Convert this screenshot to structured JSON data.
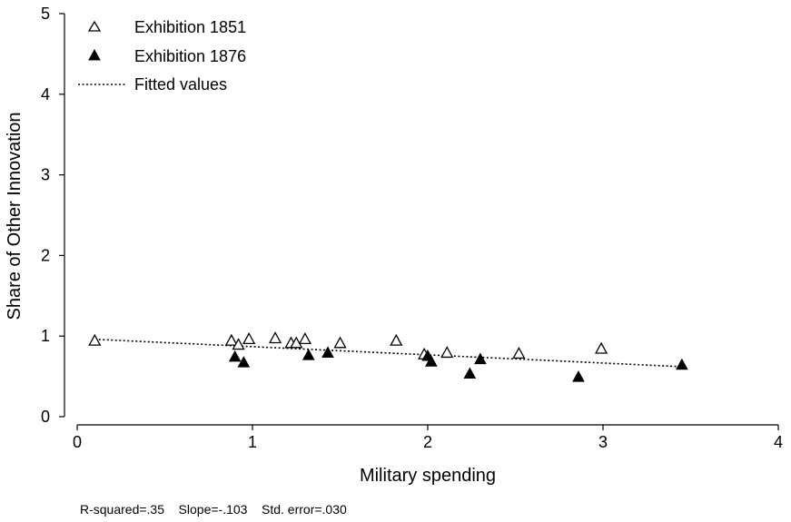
{
  "chart_data": {
    "type": "scatter",
    "xlabel": "Military spending",
    "ylabel": "Share of Other Innovation",
    "xlim": [
      0,
      4
    ],
    "ylim": [
      0,
      5
    ],
    "xticks": [
      "0",
      "1",
      "2",
      "3",
      "4"
    ],
    "yticks": [
      "0",
      "1",
      "2",
      "3",
      "4",
      "5"
    ],
    "legend_position": "top-left",
    "grid": false,
    "series": [
      {
        "name": "Exhibition 1851",
        "marker": "hollow-triangle",
        "color": "#000000",
        "points": [
          {
            "x": 0.1,
            "y": 0.95
          },
          {
            "x": 0.88,
            "y": 0.95
          },
          {
            "x": 0.92,
            "y": 0.9
          },
          {
            "x": 0.98,
            "y": 0.97
          },
          {
            "x": 1.13,
            "y": 0.98
          },
          {
            "x": 1.22,
            "y": 0.92
          },
          {
            "x": 1.25,
            "y": 0.92
          },
          {
            "x": 1.3,
            "y": 0.97
          },
          {
            "x": 1.5,
            "y": 0.92
          },
          {
            "x": 1.82,
            "y": 0.95
          },
          {
            "x": 1.98,
            "y": 0.78
          },
          {
            "x": 2.11,
            "y": 0.8
          },
          {
            "x": 2.52,
            "y": 0.79
          },
          {
            "x": 2.99,
            "y": 0.85
          }
        ]
      },
      {
        "name": "Exhibition 1876",
        "marker": "filled-triangle",
        "color": "#000000",
        "points": [
          {
            "x": 0.9,
            "y": 0.75
          },
          {
            "x": 0.95,
            "y": 0.68
          },
          {
            "x": 1.32,
            "y": 0.77
          },
          {
            "x": 1.43,
            "y": 0.8
          },
          {
            "x": 2.0,
            "y": 0.76
          },
          {
            "x": 2.02,
            "y": 0.69
          },
          {
            "x": 2.24,
            "y": 0.54
          },
          {
            "x": 2.3,
            "y": 0.72
          },
          {
            "x": 2.86,
            "y": 0.5
          },
          {
            "x": 3.45,
            "y": 0.65
          }
        ]
      },
      {
        "name": "Fitted values",
        "marker": "dotted-line",
        "color": "#000000",
        "points": [
          {
            "x": 0.1,
            "y": 0.96
          },
          {
            "x": 3.45,
            "y": 0.62
          }
        ]
      }
    ],
    "annotation": "R-squared=.35    Slope=-.103    Std. error=.030"
  }
}
